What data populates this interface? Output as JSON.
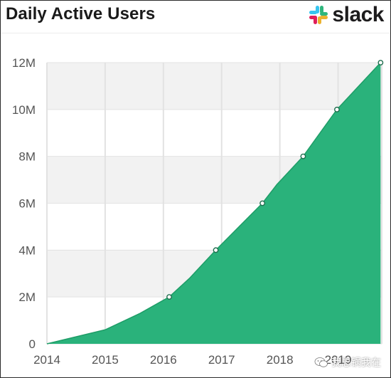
{
  "header": {
    "title": "Daily Active Users",
    "brand": "slack",
    "brand_icon": "slack-logo-icon"
  },
  "watermark": {
    "text": "我思锅我在",
    "icon": "wechat-icon"
  },
  "colors": {
    "area_fill": "#2ab27b",
    "area_stroke": "#1e9d67",
    "band_shade": "#f2f2f2",
    "grid": "#e2e2e2",
    "marker_fill": "#ffffff",
    "marker_stroke": "#1f6e4e"
  },
  "chart_data": {
    "type": "area",
    "title": "Daily Active Users",
    "xlabel": "",
    "ylabel": "",
    "xlim": [
      2014,
      2019.75
    ],
    "ylim": [
      0,
      12
    ],
    "x_ticks": [
      2014,
      2015,
      2016,
      2017,
      2018,
      2019
    ],
    "x_tick_labels": [
      "2014",
      "2015",
      "2016",
      "2017",
      "2018",
      "2019"
    ],
    "y_ticks": [
      0,
      2,
      4,
      6,
      8,
      10,
      12
    ],
    "y_tick_labels": [
      "0",
      "2M",
      "4M",
      "6M",
      "8M",
      "10M",
      "12M"
    ],
    "grid": true,
    "legend": "none",
    "series": [
      {
        "values": [
          {
            "x": 2014.0,
            "y": 0.0
          },
          {
            "x": 2015.0,
            "y": 0.6
          },
          {
            "x": 2015.6,
            "y": 1.3
          },
          {
            "x": 2016.1,
            "y": 2.0
          },
          {
            "x": 2016.45,
            "y": 2.8
          },
          {
            "x": 2016.9,
            "y": 4.0
          },
          {
            "x": 2017.3,
            "y": 5.0
          },
          {
            "x": 2017.7,
            "y": 6.0
          },
          {
            "x": 2017.95,
            "y": 6.8
          },
          {
            "x": 2018.4,
            "y": 8.0
          },
          {
            "x": 2018.98,
            "y": 10.0
          },
          {
            "x": 2019.73,
            "y": 12.0
          }
        ],
        "markers": [
          {
            "x": 2016.1,
            "y": 2.0
          },
          {
            "x": 2016.9,
            "y": 4.0
          },
          {
            "x": 2017.7,
            "y": 6.0
          },
          {
            "x": 2018.4,
            "y": 8.0
          },
          {
            "x": 2018.98,
            "y": 10.0
          },
          {
            "x": 2019.73,
            "y": 12.0
          }
        ]
      }
    ]
  }
}
